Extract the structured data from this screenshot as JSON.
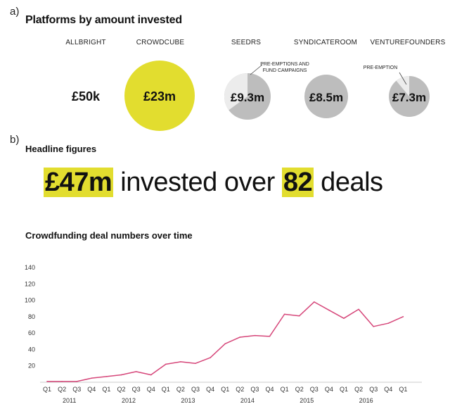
{
  "panel_a": {
    "label": "a)",
    "title": "Platforms by amount invested",
    "platforms": [
      {
        "name": "ALLBRIGHT",
        "amount": "£50k",
        "share": null
      },
      {
        "name": "CROWDCUBE",
        "amount": "£23m",
        "share": null
      },
      {
        "name": "SEEDRS",
        "amount": "£9.3m",
        "share": 0.35,
        "annotation": [
          "PRE-EMPTIONS AND",
          "FUND CAMPAIGNS"
        ]
      },
      {
        "name": "SYNDICATEROOM",
        "amount": "£8.5m",
        "share": null
      },
      {
        "name": "VENTUREFOUNDERS",
        "amount": "£7.3m",
        "share": 0.11,
        "annotation": [
          "PRE-EMPTION"
        ]
      }
    ]
  },
  "panel_b": {
    "label": "b)",
    "headline_title": "Headline figures",
    "headline": {
      "amount": "£47m",
      "text1": " invested over ",
      "deals": "82",
      "text2": " deals"
    }
  },
  "colors": {
    "accent": "#e2dd2f",
    "pie_main": "#bdbdbd",
    "pie_slice": "#ececec",
    "line": "#d6477a",
    "grid": "#dddddd"
  },
  "chart_data": {
    "type": "line",
    "title": "Crowdfunding deal numbers over time",
    "xlabel": "",
    "ylabel": "",
    "ylim": [
      0,
      140
    ],
    "yticks": [
      20,
      40,
      60,
      80,
      100,
      120,
      140
    ],
    "x": [
      "Q1",
      "Q2",
      "Q3",
      "Q4",
      "Q1",
      "Q2",
      "Q3",
      "Q4",
      "Q1",
      "Q2",
      "Q3",
      "Q4",
      "Q1",
      "Q2",
      "Q3",
      "Q4",
      "Q1",
      "Q2",
      "Q3",
      "Q4",
      "Q1",
      "Q2",
      "Q3",
      "Q4",
      "Q1"
    ],
    "year_labels": [
      {
        "label": "2011",
        "start": 0
      },
      {
        "label": "2012",
        "start": 4
      },
      {
        "label": "2013",
        "start": 8
      },
      {
        "label": "2014",
        "start": 12
      },
      {
        "label": "2015",
        "start": 16
      },
      {
        "label": "2016",
        "start": 20
      }
    ],
    "series": [
      {
        "values": [
          1,
          1,
          1,
          5,
          7,
          9,
          13,
          9,
          22,
          25,
          23,
          30,
          47,
          55,
          57,
          56,
          83,
          81,
          98,
          88,
          78,
          89,
          68,
          72,
          80
        ]
      }
    ],
    "grid": false
  }
}
